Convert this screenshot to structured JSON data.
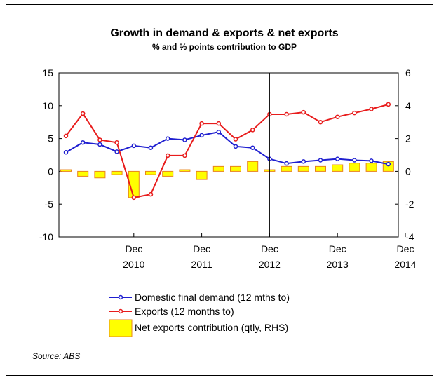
{
  "chart_data": {
    "type": "line+bar",
    "title": "Growth in demand & exports & net exports",
    "subtitle": "% and % points contribution to GDP",
    "source": "Source: ABS",
    "left_axis": {
      "ylim": [
        -10,
        15
      ],
      "ticks": [
        "15",
        "10",
        "5",
        "0",
        "-5",
        "-10"
      ],
      "tick_values": [
        15,
        10,
        5,
        0,
        -5,
        -10
      ]
    },
    "right_axis": {
      "ylim": [
        -4,
        6
      ],
      "ticks": [
        "6",
        "4",
        "2",
        "0",
        "-2",
        "-4"
      ],
      "tick_values": [
        6,
        4,
        2,
        0,
        -2,
        -4
      ]
    },
    "x_ticks": [
      {
        "label": "Dec",
        "year": "2010",
        "index": 6
      },
      {
        "label": "Dec",
        "year": "2011",
        "index": 10
      },
      {
        "label": "Dec",
        "year": "2012",
        "index": 14
      },
      {
        "label": "Dec",
        "year": "2013",
        "index": 18
      },
      {
        "label": "Dec",
        "year": "2014",
        "index": 22
      }
    ],
    "n_points": 20,
    "divider_index": 14,
    "grid": false,
    "legend": "bottom",
    "series": [
      {
        "name": "Domestic final demand (12 mths to)",
        "type": "line",
        "axis": "left",
        "color": "#1f1fd0",
        "values": [
          2.9,
          4.4,
          4.1,
          3.0,
          3.9,
          3.6,
          5.0,
          4.8,
          5.5,
          6.0,
          3.8,
          3.6,
          1.9,
          1.2,
          1.5,
          1.7,
          1.9,
          1.7,
          1.6,
          1.1
        ]
      },
      {
        "name": "Exports (12 months to)",
        "type": "line",
        "axis": "left",
        "color": "#e81c1c",
        "values": [
          5.4,
          8.8,
          4.8,
          4.4,
          -4.0,
          -3.5,
          2.4,
          2.4,
          7.3,
          7.3,
          4.9,
          6.3,
          8.7,
          8.7,
          9.0,
          7.5,
          8.3,
          8.9,
          9.5,
          10.2
        ]
      },
      {
        "name": "Net exports contribution (qtly, RHS)",
        "type": "bar",
        "axis": "right",
        "color": "#ffff00",
        "edge": "#e8841c",
        "values": [
          0.1,
          -0.3,
          -0.4,
          -0.2,
          -1.6,
          -0.2,
          -0.3,
          0.1,
          -0.5,
          0.3,
          0.3,
          0.6,
          0.1,
          0.3,
          0.3,
          0.3,
          0.4,
          0.5,
          0.5,
          0.6
        ]
      }
    ]
  }
}
